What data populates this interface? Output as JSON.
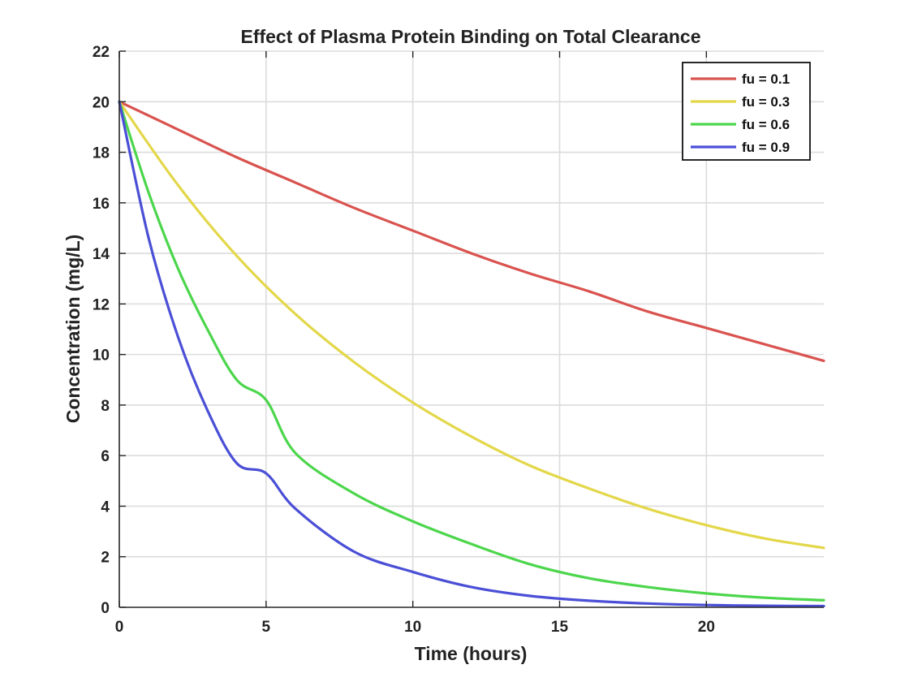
{
  "chart_data": {
    "type": "line",
    "title": "Effect of Plasma Protein Binding on Total Clearance",
    "xlabel": "Time (hours)",
    "ylabel": "Concentration (mg/L)",
    "xlim": [
      0,
      24
    ],
    "ylim": [
      0,
      22
    ],
    "xticks": [
      0,
      5,
      10,
      15,
      20
    ],
    "yticks": [
      0,
      2,
      4,
      6,
      8,
      10,
      12,
      14,
      16,
      18,
      20,
      22
    ],
    "grid": true,
    "legend_position": "top-right",
    "series": [
      {
        "name": "fu = 0.1",
        "color": "#d9534f",
        "x": [
          0,
          2,
          4,
          6,
          8,
          10,
          12,
          14,
          16,
          18,
          20,
          22,
          24
        ],
        "values": [
          20,
          18.9,
          17.8,
          16.8,
          15.8,
          14.9,
          14.0,
          13.2,
          12.5,
          11.7,
          11.05,
          10.4,
          9.75
        ]
      },
      {
        "name": "fu = 0.3",
        "color": "#e3d74a",
        "x": [
          0,
          2,
          4,
          6,
          8,
          10,
          12,
          14,
          16,
          18,
          20,
          22,
          24
        ],
        "values": [
          20,
          16.7,
          13.9,
          11.6,
          9.7,
          8.1,
          6.75,
          5.6,
          4.7,
          3.9,
          3.25,
          2.72,
          2.35
        ]
      },
      {
        "name": "fu = 0.6",
        "color": "#4cd64c",
        "x": [
          0,
          1,
          2,
          3,
          4,
          5,
          6,
          8,
          10,
          12,
          14,
          16,
          18,
          20,
          22,
          24
        ],
        "values": [
          20,
          16.4,
          13.4,
          11.0,
          9.0,
          8.2,
          6.1,
          4.5,
          3.4,
          2.5,
          1.7,
          1.15,
          0.8,
          0.55,
          0.38,
          0.28
        ]
      },
      {
        "name": "fu = 0.9",
        "color": "#4a4fd6",
        "x": [
          0,
          1,
          2,
          3,
          4,
          5,
          6,
          8,
          10,
          12,
          14,
          16,
          18,
          20,
          22,
          24
        ],
        "values": [
          20,
          14.6,
          10.7,
          7.8,
          5.7,
          5.3,
          3.9,
          2.2,
          1.4,
          0.8,
          0.45,
          0.26,
          0.15,
          0.09,
          0.06,
          0.05
        ]
      }
    ]
  }
}
